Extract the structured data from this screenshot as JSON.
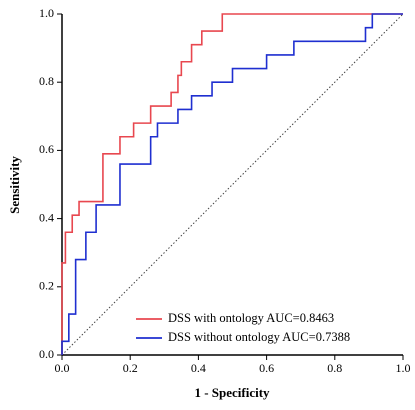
{
  "chart_data": {
    "type": "line",
    "xlabel": "1 - Specificity",
    "ylabel": "Sensitivity",
    "xlim": [
      0,
      1
    ],
    "ylim": [
      0,
      1
    ],
    "xticks": [
      {
        "value": 0,
        "label": "0.0"
      },
      0.2,
      0.4,
      0.6,
      0.8,
      {
        "value": 1,
        "label": "1.0"
      }
    ],
    "yticks": [
      {
        "value": 0,
        "label": "0.0"
      },
      0.2,
      0.4,
      0.6,
      0.8,
      {
        "value": 1,
        "label": "1.0"
      }
    ],
    "legend": "lower right",
    "series": [
      {
        "name": "DSS with ontology AUC=0.8463",
        "color": "#e8474f",
        "x": [
          0,
          0,
          0.01,
          0.01,
          0.03,
          0.03,
          0.05,
          0.05,
          0.12,
          0.12,
          0.17,
          0.17,
          0.21,
          0.21,
          0.26,
          0.26,
          0.32,
          0.32,
          0.34,
          0.34,
          0.35,
          0.35,
          0.38,
          0.38,
          0.41,
          0.41,
          0.47,
          0.47,
          1
        ],
        "values": [
          0,
          0.27,
          0.27,
          0.36,
          0.36,
          0.41,
          0.41,
          0.45,
          0.45,
          0.59,
          0.59,
          0.64,
          0.64,
          0.68,
          0.68,
          0.73,
          0.73,
          0.77,
          0.77,
          0.82,
          0.82,
          0.86,
          0.86,
          0.91,
          0.91,
          0.95,
          0.95,
          1,
          1
        ]
      },
      {
        "name": "DSS without ontology AUC=0.7388",
        "color": "#1f2fd0",
        "x": [
          0,
          0,
          0.02,
          0.02,
          0.04,
          0.04,
          0.07,
          0.07,
          0.1,
          0.1,
          0.17,
          0.17,
          0.26,
          0.26,
          0.28,
          0.28,
          0.34,
          0.34,
          0.38,
          0.38,
          0.44,
          0.44,
          0.5,
          0.5,
          0.6,
          0.6,
          0.68,
          0.68,
          0.89,
          0.89,
          0.91,
          0.91,
          1
        ],
        "values": [
          0,
          0.04,
          0.04,
          0.12,
          0.12,
          0.28,
          0.28,
          0.36,
          0.36,
          0.44,
          0.44,
          0.56,
          0.56,
          0.64,
          0.64,
          0.68,
          0.68,
          0.72,
          0.72,
          0.76,
          0.76,
          0.8,
          0.8,
          0.84,
          0.84,
          0.88,
          0.88,
          0.92,
          0.92,
          0.96,
          0.96,
          1,
          1
        ]
      }
    ]
  }
}
